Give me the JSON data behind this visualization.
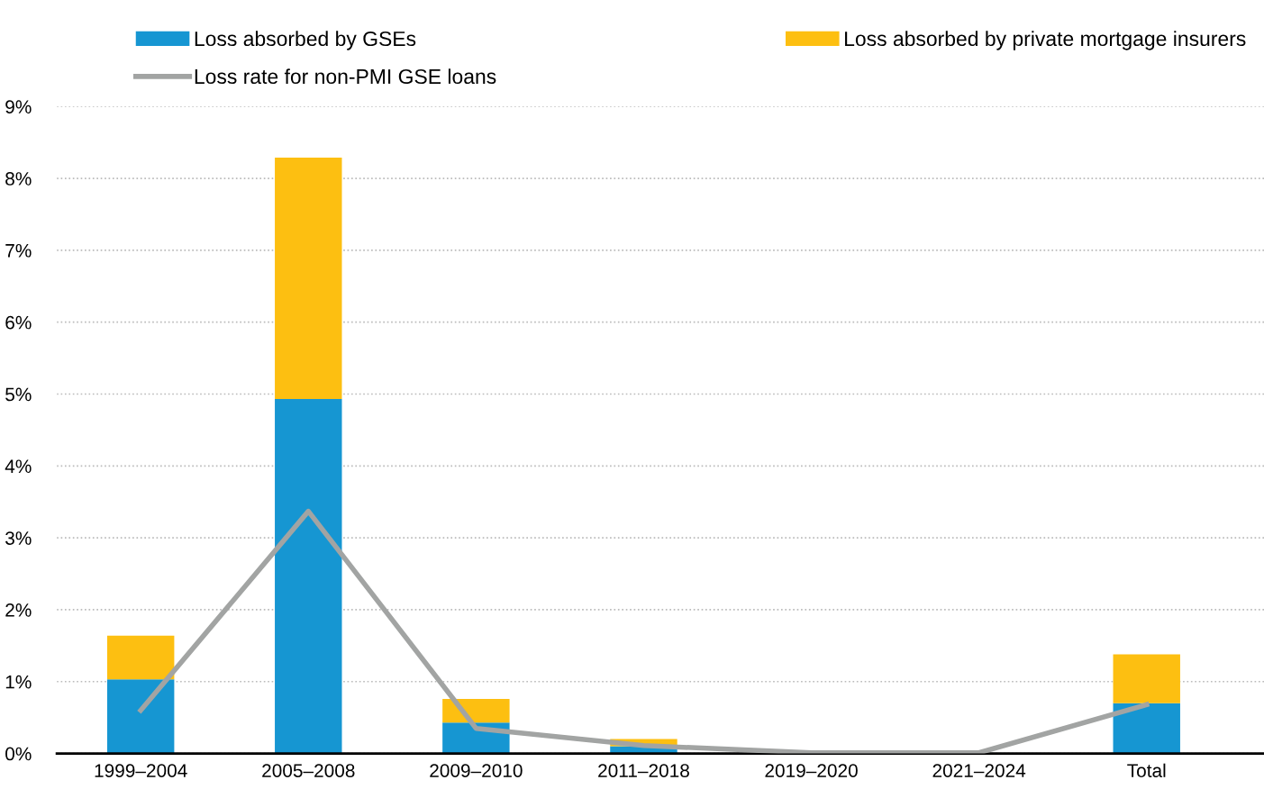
{
  "chart_data": {
    "type": "bar",
    "stacked": true,
    "categories": [
      "1999–2004",
      "2005–2008",
      "2009–2010",
      "2011–2018",
      "2019–2020",
      "2021–2024",
      "Total"
    ],
    "series": [
      {
        "name": "Loss absorbed by GSEs",
        "color": "#1696d2",
        "values": [
          1.03,
          4.93,
          0.43,
          0.1,
          0,
          0,
          0.7
        ]
      },
      {
        "name": "Loss absorbed by private mortgage insurers",
        "color": "#fdbf11",
        "values": [
          0.61,
          3.36,
          0.33,
          0.1,
          0,
          0,
          0.68
        ]
      },
      {
        "name": "Loss rate for non-PMI GSE loans",
        "type": "line",
        "color": "#a2a4a3",
        "values": [
          0.6,
          3.37,
          0.35,
          0.11,
          0.01,
          0.01,
          0.68
        ]
      }
    ],
    "ylim": [
      0,
      9
    ],
    "yticks": [
      {
        "value": 0,
        "label": "0%"
      },
      {
        "value": 1,
        "label": "1%"
      },
      {
        "value": 2,
        "label": "2%"
      },
      {
        "value": 3,
        "label": "3%"
      },
      {
        "value": 4,
        "label": "4%"
      },
      {
        "value": 5,
        "label": "5%"
      },
      {
        "value": 6,
        "label": "6%"
      },
      {
        "value": 7,
        "label": "7%"
      },
      {
        "value": 8,
        "label": "8%"
      },
      {
        "value": 9,
        "label": "9%"
      }
    ],
    "grid": "y",
    "legend": "top",
    "marker": "none",
    "line_style": "solid"
  }
}
